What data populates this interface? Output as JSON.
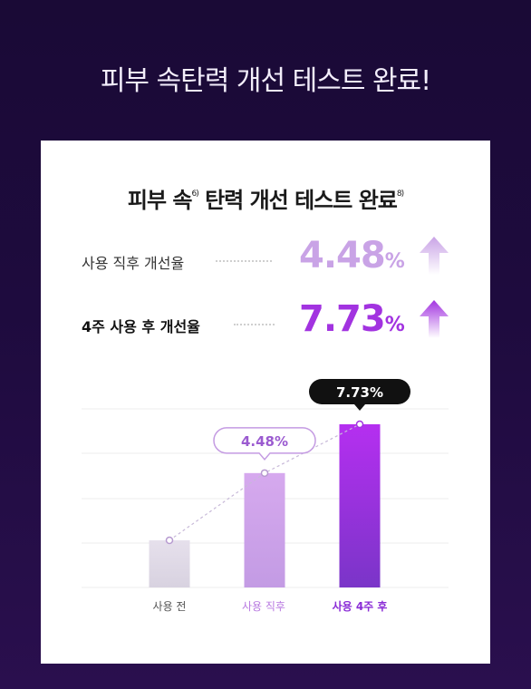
{
  "page_title": "피부 속탄력 개선 테스트 완료!",
  "card": {
    "title_part1": "피부 속",
    "title_sup1": "6)",
    "title_part2": " 탄력 개선 테스트 완료",
    "title_sup2": "8)"
  },
  "stats": [
    {
      "label": "사용 직후 개선율",
      "value": "4.48",
      "unit": "%",
      "color": "#c9a3e6",
      "icon": "arrow-up-icon"
    },
    {
      "label": "4주 사용 후 개선율",
      "value": "7.73",
      "unit": "%",
      "color": "#a233e0",
      "icon": "arrow-up-icon"
    }
  ],
  "chart_data": {
    "type": "bar",
    "categories": [
      "사용 전",
      "사용 직후",
      "사용 4주 후"
    ],
    "values": [
      0,
      4.48,
      7.73
    ],
    "data_labels": [
      "",
      "4.48%",
      "7.73%"
    ],
    "label_colors": [
      "#555555",
      "#b879e0",
      "#8a2bd6"
    ],
    "bar_colors": [
      "#dcd6e4",
      "#cfa3ea",
      "#9b2fe0"
    ],
    "grid": true,
    "trend_line": true
  }
}
